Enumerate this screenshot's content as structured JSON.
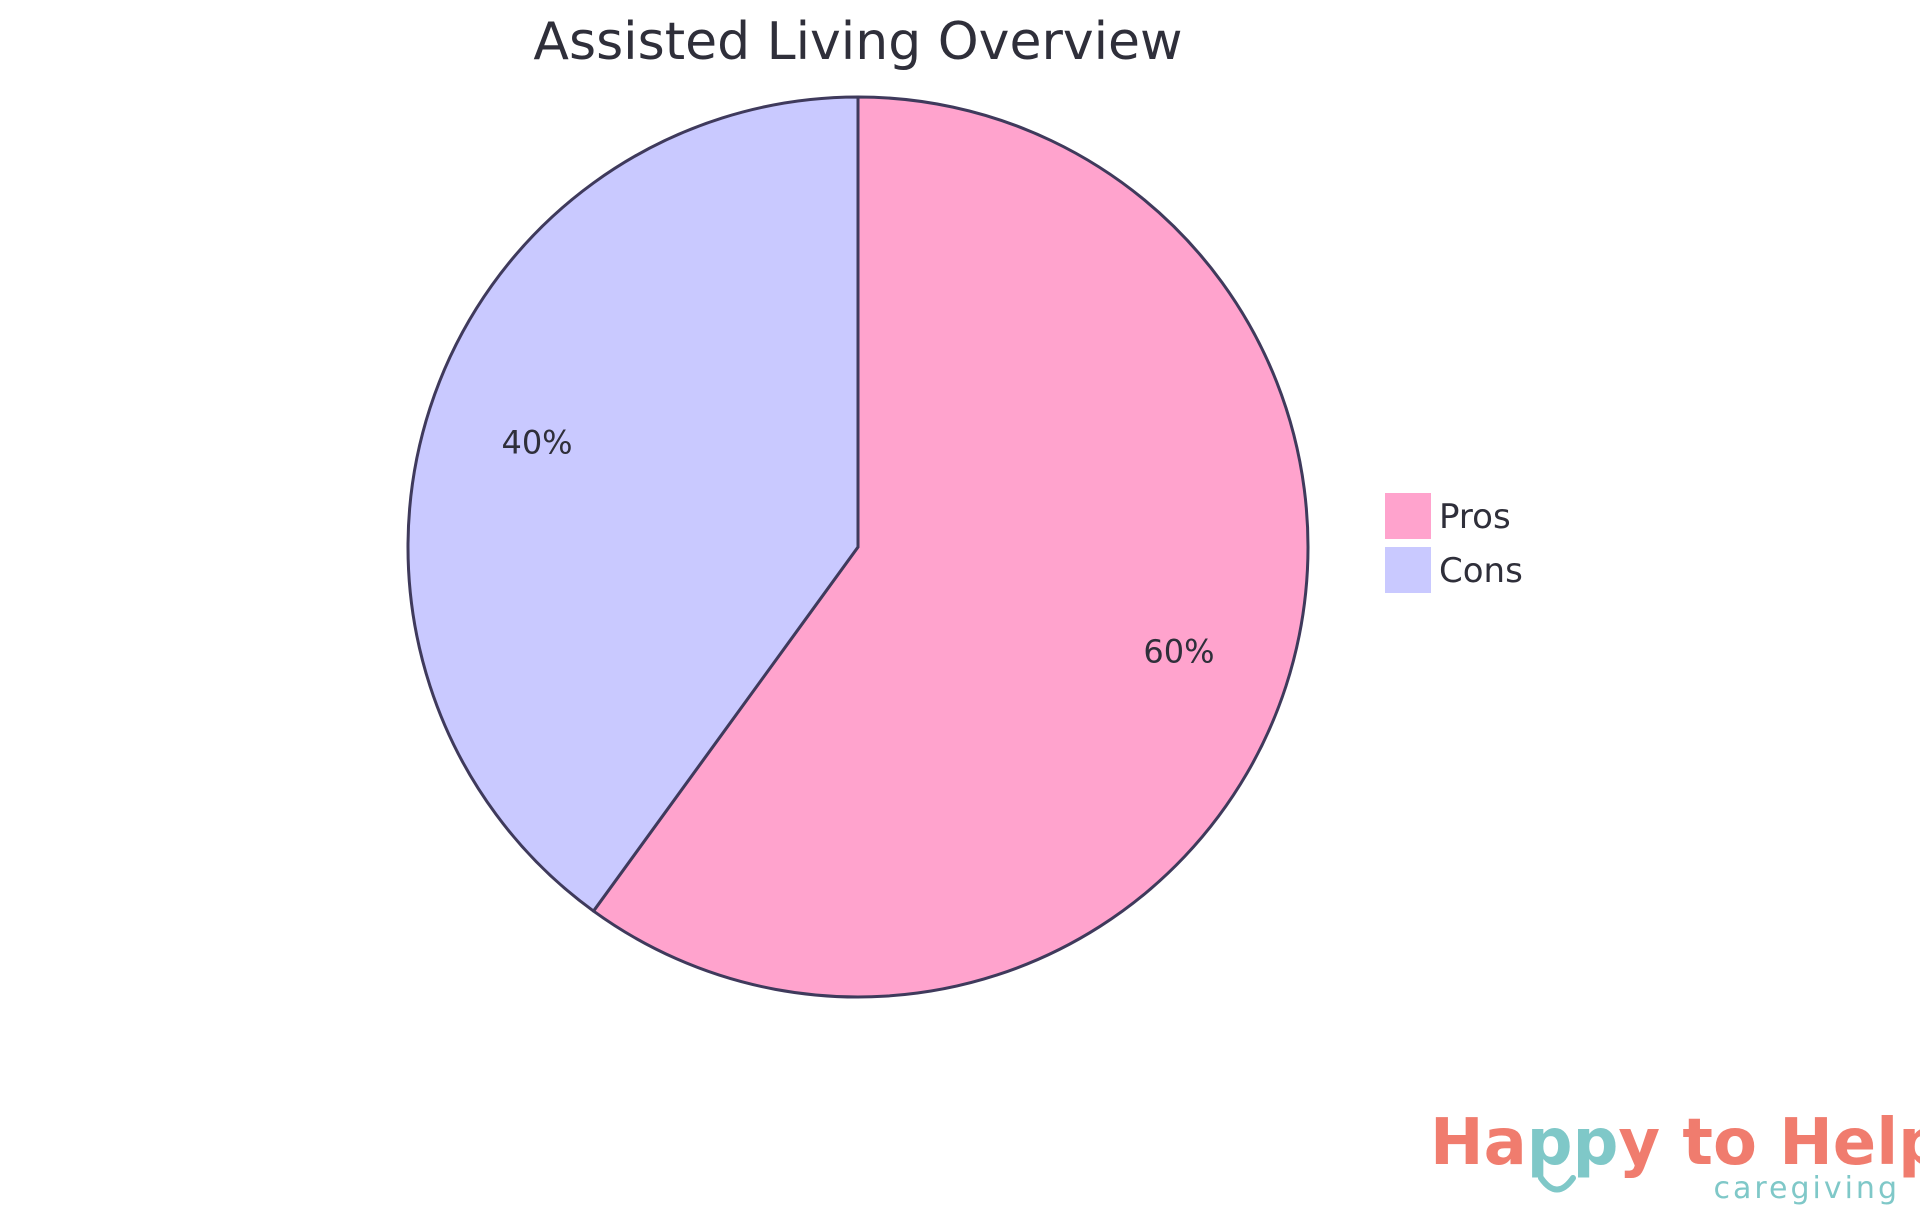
{
  "chart_data": {
    "type": "pie",
    "title": "Assisted Living Overview",
    "slices": [
      {
        "name": "Pros",
        "value": 60,
        "label": "60%",
        "color": "#ffa3cd"
      },
      {
        "name": "Cons",
        "value": 40,
        "label": "40%",
        "color": "#c9c9ff"
      }
    ],
    "legend": {
      "position": "right",
      "entries": [
        "Pros",
        "Cons"
      ]
    },
    "stroke_color": "#3f3a5c"
  },
  "logo": {
    "main_part1": "Ha",
    "main_part2": "pp",
    "main_part3": "y to Help",
    "sub": "caregiving",
    "accent_coral": "#f07c6e",
    "accent_teal": "#7fc8c8",
    "smile-icon": "smile-icon"
  }
}
